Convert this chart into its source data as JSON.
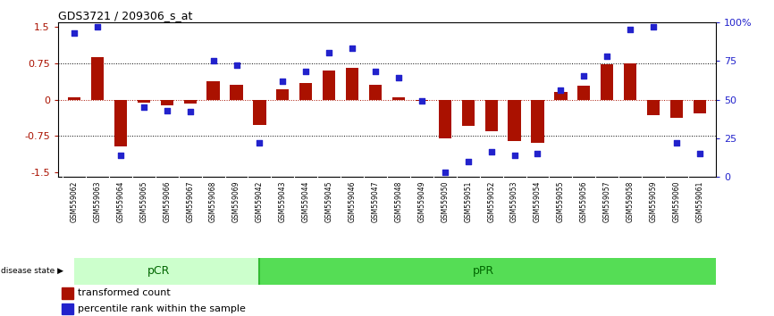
{
  "title": "GDS3721 / 209306_s_at",
  "samples": [
    "GSM559062",
    "GSM559063",
    "GSM559064",
    "GSM559065",
    "GSM559066",
    "GSM559067",
    "GSM559068",
    "GSM559069",
    "GSM559042",
    "GSM559043",
    "GSM559044",
    "GSM559045",
    "GSM559046",
    "GSM559047",
    "GSM559048",
    "GSM559049",
    "GSM559050",
    "GSM559051",
    "GSM559052",
    "GSM559053",
    "GSM559054",
    "GSM559055",
    "GSM559056",
    "GSM559057",
    "GSM559058",
    "GSM559059",
    "GSM559060",
    "GSM559061"
  ],
  "bar_values": [
    0.05,
    0.87,
    -0.97,
    -0.06,
    -0.12,
    -0.08,
    0.38,
    0.3,
    -0.52,
    0.22,
    0.35,
    0.6,
    0.65,
    0.3,
    0.05,
    -0.03,
    -0.8,
    -0.55,
    -0.65,
    -0.85,
    -0.9,
    0.15,
    0.28,
    0.73,
    0.75,
    -0.33,
    -0.37,
    -0.28
  ],
  "percentile_values": [
    93,
    97,
    14,
    45,
    43,
    42,
    75,
    72,
    22,
    62,
    68,
    80,
    83,
    68,
    64,
    49,
    3,
    10,
    16,
    14,
    15,
    56,
    65,
    78,
    95,
    97,
    22,
    15
  ],
  "pcr_count": 8,
  "bar_color": "#aa1100",
  "dot_color": "#2222cc",
  "pcr_color": "#ccffcc",
  "ppr_color": "#55dd55",
  "label_bg_color": "#dddddd",
  "ylim": [
    -1.6,
    1.6
  ],
  "right_ylim": [
    0,
    100
  ],
  "yticks_left": [
    -1.5,
    -0.75,
    0,
    0.75,
    1.5
  ],
  "yticks_right": [
    0,
    25,
    50,
    75,
    100
  ],
  "hlines": [
    0.75,
    -0.75
  ],
  "background_color": "#ffffff"
}
